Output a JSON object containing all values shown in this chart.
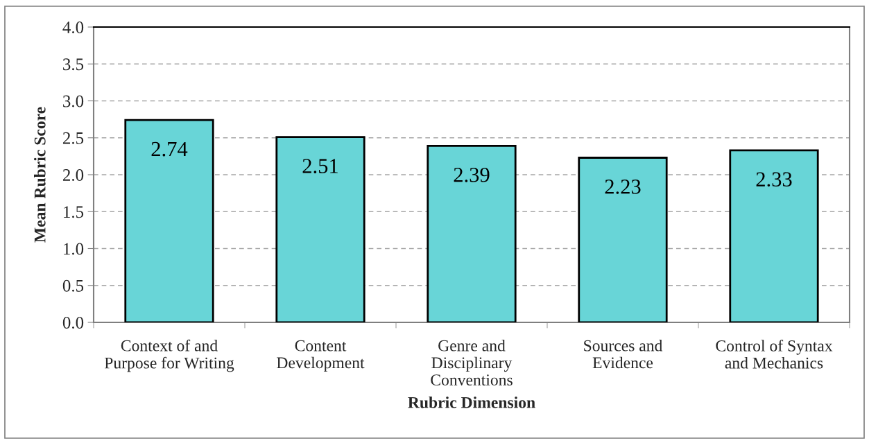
{
  "chart_data": {
    "type": "bar",
    "xlabel": "Rubric Dimension",
    "ylabel": "Mean Rubric Score",
    "categories": [
      "Context of and\nPurpose for Writing",
      "Content\nDevelopment",
      "Genre and\nDisciplinary\nConventions",
      "Sources and\nEvidence",
      "Control of Syntax\nand Mechanics"
    ],
    "values": [
      2.74,
      2.51,
      2.39,
      2.23,
      2.33
    ],
    "color": "#68d5d7",
    "ylim": [
      0,
      4
    ],
    "yticks": [
      {
        "value": 0,
        "label": "0.0"
      },
      {
        "value": 0.5,
        "label": "0.5"
      },
      {
        "value": 1,
        "label": "1.0"
      },
      {
        "value": 1.5,
        "label": "1.5"
      },
      {
        "value": 2,
        "label": "2.0"
      },
      {
        "value": 2.5,
        "label": "2.5"
      },
      {
        "value": 3,
        "label": "3.0"
      },
      {
        "value": 3.5,
        "label": "3.5"
      },
      {
        "value": 4,
        "label": "4.0"
      }
    ],
    "grid": "y",
    "data_labels": true
  }
}
